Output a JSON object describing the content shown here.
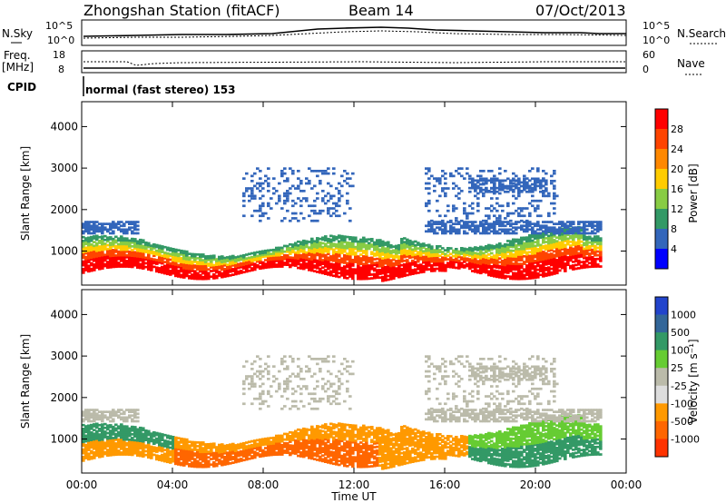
{
  "header": {
    "station": "Zhongshan Station (fitACF)",
    "beam": "Beam 14",
    "date": "07/Oct/2013"
  },
  "noise_panel": {
    "left_label": "N.Sky",
    "right_label": "N.Search",
    "ticks_left": [
      "10^5",
      "10^0"
    ],
    "ticks_right": [
      "10^5",
      "10^0"
    ]
  },
  "freq_panel": {
    "left_label_1": "Freq.",
    "left_label_2": "[MHz]",
    "ticks_left": [
      "18",
      "8"
    ],
    "right_label": "Nave",
    "ticks_right": [
      "60",
      "0"
    ]
  },
  "cpid": {
    "label": "CPID",
    "value": "normal (fast stereo) 153"
  },
  "chart_data": [
    {
      "type": "heatmap",
      "title": "Power",
      "xlabel": "Time UT",
      "ylabel": "Slant Range [km]",
      "xlim_hours": [
        0,
        24
      ],
      "ylim_km": [
        180,
        4600
      ],
      "yticks": [
        1000,
        2000,
        3000,
        4000
      ],
      "yticks_labels": [
        "1000",
        "2000",
        "3000",
        "4000"
      ],
      "colorbar_label": "Power [dB]",
      "colorbar_ticks": [
        "28",
        "24",
        "20",
        "16",
        "12",
        "8",
        "4"
      ],
      "colorbar_colors": [
        "#ff0000",
        "#ff4400",
        "#ff8800",
        "#ffcc00",
        "#88cc44",
        "#339966",
        "#3366bb",
        "#0000ff"
      ]
    },
    {
      "type": "heatmap",
      "title": "Velocity",
      "xlabel": "Time UT",
      "ylabel": "Slant Range [km]",
      "xlim_hours": [
        0,
        24
      ],
      "ylim_km": [
        180,
        4600
      ],
      "yticks": [
        1000,
        2000,
        3000,
        4000
      ],
      "yticks_labels": [
        "1000",
        "2000",
        "3000",
        "4000"
      ],
      "colorbar_label": "Velocity [m s⁻¹]",
      "colorbar_ticks": [
        "1000",
        "500",
        "100",
        "25",
        "-25",
        "-100",
        "-500",
        "-1000"
      ],
      "colorbar_colors": [
        "#2244cc",
        "#336699",
        "#339966",
        "#66cc33",
        "#bbbbaa",
        "#dddddd",
        "#ff9900",
        "#ff6600",
        "#ff3300"
      ]
    }
  ],
  "xaxis": {
    "tick_labels": [
      "00:00",
      "04:00",
      "08:00",
      "12:00",
      "16:00",
      "20:00",
      "00:00"
    ],
    "label": "Time UT"
  }
}
